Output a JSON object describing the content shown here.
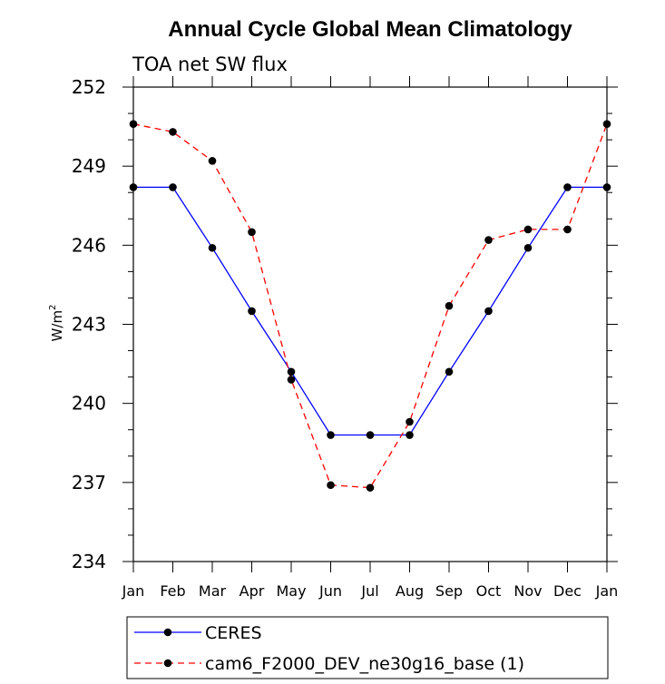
{
  "chart_data": {
    "type": "line",
    "title": "Annual Cycle Global Mean Climatology",
    "subtitle": "TOA net SW flux",
    "ylabel": "W/m",
    "ylabel_superscript": "2",
    "xlabel": "",
    "ylim": [
      234,
      252
    ],
    "yticks": [
      234,
      237,
      240,
      243,
      246,
      249,
      252
    ],
    "ytick_labels": [
      "234",
      "237",
      "240",
      "243",
      "246",
      "249",
      "252"
    ],
    "categories": [
      "Jan",
      "Feb",
      "Mar",
      "Apr",
      "May",
      "Jun",
      "Jul",
      "Aug",
      "Sep",
      "Oct",
      "Nov",
      "Dec",
      "Jan"
    ],
    "series": [
      {
        "name": "CERES",
        "color": "#0000ff",
        "dash": "solid",
        "values": [
          248.2,
          248.2,
          245.9,
          243.5,
          241.2,
          238.8,
          238.8,
          238.8,
          241.2,
          243.5,
          245.9,
          248.2,
          248.2
        ]
      },
      {
        "name": "cam6_F2000_DEV_ne30g16_base (1)",
        "color": "#ff0000",
        "dash": "dashed",
        "values": [
          250.6,
          250.3,
          249.2,
          246.5,
          240.9,
          236.9,
          236.8,
          239.3,
          243.7,
          246.2,
          246.6,
          246.6,
          250.6
        ]
      }
    ],
    "grid": false,
    "legend_position": "bottom-left"
  }
}
